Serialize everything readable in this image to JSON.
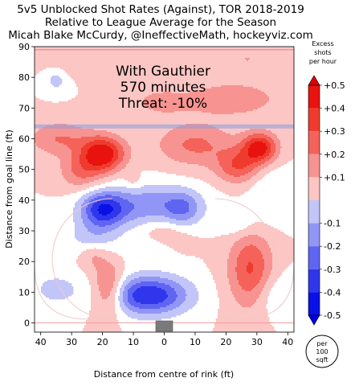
{
  "chart_data": {
    "type": "heatmap",
    "title_lines": [
      "5v5 Unblocked Shot Rates (Against), TOR 2018-2019",
      "Relative to League Average for the Season",
      "Micah Blake McCurdy, @IneffectiveMath, hockeyviz.com"
    ],
    "annotation_lines": [
      "With Gauthier",
      "570 minutes",
      "Threat: -10%"
    ],
    "xlabel": "Distance from centre of rink (ft)",
    "ylabel": "Distance from goal line (ft)",
    "xlim": [
      42,
      -42
    ],
    "ylim": [
      -3,
      90
    ],
    "x_ticks": [
      "40",
      "30",
      "20",
      "10",
      "0",
      "10",
      "20",
      "30",
      "40"
    ],
    "x_tick_values": [
      40,
      30,
      20,
      10,
      0,
      -10,
      -20,
      -30,
      -40
    ],
    "y_ticks": [
      "0",
      "10",
      "20",
      "30",
      "40",
      "50",
      "60",
      "70",
      "80",
      "90"
    ],
    "y_tick_values": [
      0,
      10,
      20,
      30,
      40,
      50,
      60,
      70,
      80,
      90
    ],
    "blue_line_y": 64,
    "rink_top_line_y": 89,
    "goal_line_y": 0,
    "hotspots": [
      {
        "x": 20,
        "y": 55,
        "peak": 0.5,
        "sx": 5,
        "sy": 4
      },
      {
        "x": -31,
        "y": 57,
        "peak": 0.45,
        "sx": 4,
        "sy": 3.5
      },
      {
        "x": 34,
        "y": 60,
        "peak": 0.2,
        "sx": 7,
        "sy": 4
      },
      {
        "x": 27,
        "y": 49,
        "peak": 0.2,
        "sx": 5,
        "sy": 4
      },
      {
        "x": -24,
        "y": 51,
        "peak": 0.28,
        "sx": 5,
        "sy": 4
      },
      {
        "x": -10,
        "y": 58,
        "peak": 0.22,
        "sx": 9,
        "sy": 5
      },
      {
        "x": -22,
        "y": 73,
        "peak": 0.18,
        "sx": 11,
        "sy": 4
      },
      {
        "x": -27,
        "y": 86,
        "peak": 0.1,
        "sx": 5,
        "sy": 3
      },
      {
        "x": 2,
        "y": 72,
        "peak": 0.12,
        "sx": 7,
        "sy": 3.5
      },
      {
        "x": 24,
        "y": 85,
        "peak": 0.1,
        "sx": 8,
        "sy": 3
      },
      {
        "x": 18,
        "y": 11,
        "peak": 0.3,
        "sx": 3.5,
        "sy": 6
      },
      {
        "x": 23,
        "y": 22,
        "peak": 0.12,
        "sx": 3,
        "sy": 3
      },
      {
        "x": -28,
        "y": 17,
        "peak": 0.32,
        "sx": 5,
        "sy": 9
      },
      {
        "x": 0,
        "y": 30,
        "peak": 0.12,
        "sx": 6,
        "sy": 4
      },
      {
        "x": 10,
        "y": 46,
        "peak": 0.08,
        "sx": 2,
        "sy": 2
      },
      {
        "x": 5,
        "y": 9,
        "peak": -0.5,
        "sx": 9,
        "sy": 4.5
      },
      {
        "x": 20,
        "y": 37,
        "peak": -0.42,
        "sx": 5,
        "sy": 4
      },
      {
        "x": 5,
        "y": 38,
        "peak": -0.28,
        "sx": 11,
        "sy": 5
      },
      {
        "x": -6,
        "y": 37,
        "peak": -0.2,
        "sx": 4,
        "sy": 4
      },
      {
        "x": 23,
        "y": 28,
        "peak": -0.15,
        "sx": 6,
        "sy": 4
      },
      {
        "x": 35,
        "y": 11,
        "peak": -0.14,
        "sx": 6,
        "sy": 4
      },
      {
        "x": -36,
        "y": 9,
        "peak": -0.12,
        "sx": 6,
        "sy": 5
      },
      {
        "x": -34,
        "y": 42,
        "peak": -0.1,
        "sx": 5,
        "sy": 7
      },
      {
        "x": -24,
        "y": 32,
        "peak": -0.1,
        "sx": 4,
        "sy": 3
      },
      {
        "x": 35,
        "y": 79,
        "peak": -0.14,
        "sx": 2.5,
        "sy": 2.5
      },
      {
        "x": 5,
        "y": 24,
        "peak": -0.1,
        "sx": 5,
        "sy": 3
      }
    ],
    "colorbar": {
      "label_lines": [
        "Excess",
        "shots",
        "per hour"
      ],
      "ticks": [
        "+0.5",
        "+0.4",
        "+0.3",
        "+0.2",
        "+0.1",
        "-0.1",
        "-0.2",
        "-0.3",
        "-0.4",
        "-0.5"
      ],
      "levels": [
        {
          "from": 0.4,
          "to": 0.5,
          "color": "#e8130e"
        },
        {
          "from": 0.3,
          "to": 0.4,
          "color": "#ef3b2e"
        },
        {
          "from": 0.2,
          "to": 0.3,
          "color": "#f4625a"
        },
        {
          "from": 0.1,
          "to": 0.2,
          "color": "#f79491"
        },
        {
          "from": 0.0,
          "to": 0.1,
          "color": "#fbc6c4"
        },
        {
          "from": -0.1,
          "to": 0.0,
          "color": "#ffffff"
        },
        {
          "from": -0.2,
          "to": -0.1,
          "color": "#c2c5f8"
        },
        {
          "from": -0.3,
          "to": -0.2,
          "color": "#9196f6"
        },
        {
          "from": -0.4,
          "to": -0.3,
          "color": "#5f65f1"
        },
        {
          "from": -0.5,
          "to": -0.4,
          "color": "#2f36ec"
        },
        {
          "from": -0.6,
          "to": -0.5,
          "color": "#0a11e6"
        }
      ]
    },
    "scale_label_lines": [
      "per",
      "100",
      "sqft"
    ]
  }
}
